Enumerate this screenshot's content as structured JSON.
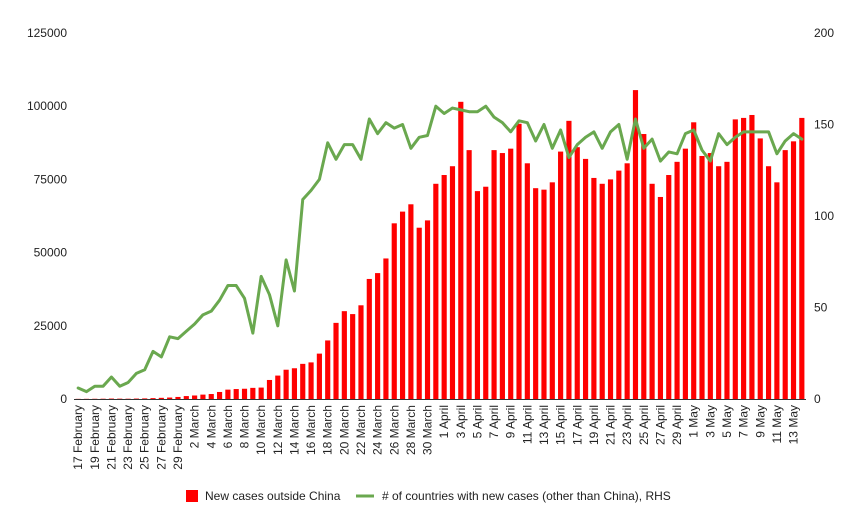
{
  "chart_data": {
    "type": "bar",
    "title": "",
    "xlabel": "",
    "ylabel": "",
    "y2label": "",
    "grid": false,
    "legend_position": "bottom",
    "ylim": [
      0,
      125000
    ],
    "y_ticks": [
      0,
      25000,
      50000,
      75000,
      100000,
      125000
    ],
    "y_tick_labels": [
      "0",
      "25000",
      "50000",
      "75000",
      "100000",
      "125000"
    ],
    "y2lim": [
      0,
      200
    ],
    "y2_ticks": [
      0,
      50,
      100,
      150,
      200
    ],
    "y2_tick_labels": [
      "0",
      "50",
      "100",
      "150",
      "200"
    ],
    "categories": [
      "17 February",
      "18 February",
      "19 February",
      "20 February",
      "21 February",
      "22 February",
      "23 February",
      "24 February",
      "25 February",
      "26 February",
      "27 February",
      "28 February",
      "29 February",
      "1 March",
      "2 March",
      "3 March",
      "4 March",
      "5 March",
      "6 March",
      "7 March",
      "8 March",
      "9 March",
      "10 March",
      "11 March",
      "12 March",
      "13 March",
      "14 March",
      "15 March",
      "16 March",
      "17 March",
      "18 March",
      "19 March",
      "20 March",
      "21 March",
      "22 March",
      "23 March",
      "24 March",
      "25 March",
      "26 March",
      "27 March",
      "28 March",
      "29 March",
      "30 March",
      "31 March",
      "1 April",
      "2 April",
      "3 April",
      "4 April",
      "5 April",
      "6 April",
      "7 April",
      "8 April",
      "9 April",
      "10 April",
      "11 April",
      "12 April",
      "13 April",
      "14 April",
      "15 April",
      "16 April",
      "17 April",
      "18 April",
      "19 April",
      "20 April",
      "21 April",
      "22 April",
      "23 April",
      "24 April",
      "25 April",
      "26 April",
      "27 April",
      "28 April",
      "29 April",
      "30 April",
      "1 May",
      "2 May",
      "3 May",
      "4 May",
      "5 May",
      "6 May",
      "7 May",
      "8 May",
      "9 May",
      "10 May",
      "11 May",
      "12 May",
      "13 May",
      "14 May"
    ],
    "x_tick_labels": [
      "17 February",
      "19 February",
      "21 February",
      "23 February",
      "25 February",
      "27 February",
      "29 February",
      "2 March",
      "4 March",
      "6 March",
      "8 March",
      "10 March",
      "12 March",
      "14 March",
      "16 March",
      "18 March",
      "20 March",
      "22 March",
      "24 March",
      "26 March",
      "28 March",
      "30 March",
      "1 April",
      "3 April",
      "5 April",
      "7 April",
      "9 April",
      "11 April",
      "13 April",
      "15 April",
      "17 April",
      "19 April",
      "21 April",
      "23 April",
      "25 April",
      "27 April",
      "29 April",
      "1 May",
      "3 May",
      "5 May",
      "7 May",
      "9 May",
      "11 May",
      "13 May"
    ],
    "series": [
      {
        "name": "New cases outside China",
        "type": "bar",
        "axis": "left",
        "color": "#ff0000",
        "values": [
          50,
          60,
          80,
          100,
          150,
          120,
          100,
          150,
          200,
          300,
          400,
          500,
          700,
          1000,
          1200,
          1500,
          1700,
          2400,
          3200,
          3400,
          3500,
          3800,
          3900,
          6500,
          8000,
          10000,
          10500,
          12000,
          12500,
          15500,
          20000,
          26000,
          30000,
          29000,
          32000,
          41000,
          43000,
          48000,
          60000,
          64000,
          66500,
          58500,
          61000,
          73500,
          76500,
          79500,
          101500,
          85000,
          71000,
          72500,
          85000,
          84000,
          85500,
          94000,
          80500,
          72000,
          71500,
          74000,
          84500,
          95000,
          86000,
          82000,
          75500,
          73500,
          75000,
          78000,
          80500,
          105500,
          90500,
          73500,
          69000,
          76500,
          81000,
          85500,
          94500,
          83000,
          84000,
          79500,
          81000,
          95500,
          96000,
          97000,
          89000,
          79500,
          74000,
          85000,
          88000,
          96000
        ]
      },
      {
        "name": "# of countries with new cases (other than China), RHS",
        "type": "line",
        "axis": "right",
        "color": "#6aa84f",
        "values": [
          6,
          4,
          7,
          7,
          12,
          7,
          9,
          14,
          16,
          26,
          23,
          34,
          33,
          37,
          41,
          46,
          48,
          54,
          62,
          62,
          55,
          36,
          67,
          57,
          40,
          76,
          59,
          109,
          114,
          120,
          140,
          131,
          139,
          139,
          131,
          153,
          145,
          151,
          148,
          150,
          137,
          143,
          144,
          160,
          156,
          159,
          158,
          157,
          157,
          160,
          154,
          151,
          146,
          152,
          151,
          141,
          150,
          137,
          147,
          132,
          139,
          143,
          146,
          137,
          146,
          150,
          131,
          153,
          137,
          142,
          130,
          135,
          134,
          145,
          147,
          136,
          130,
          145,
          139,
          143,
          146,
          146,
          146,
          146,
          134,
          141,
          145,
          142
        ]
      }
    ]
  }
}
